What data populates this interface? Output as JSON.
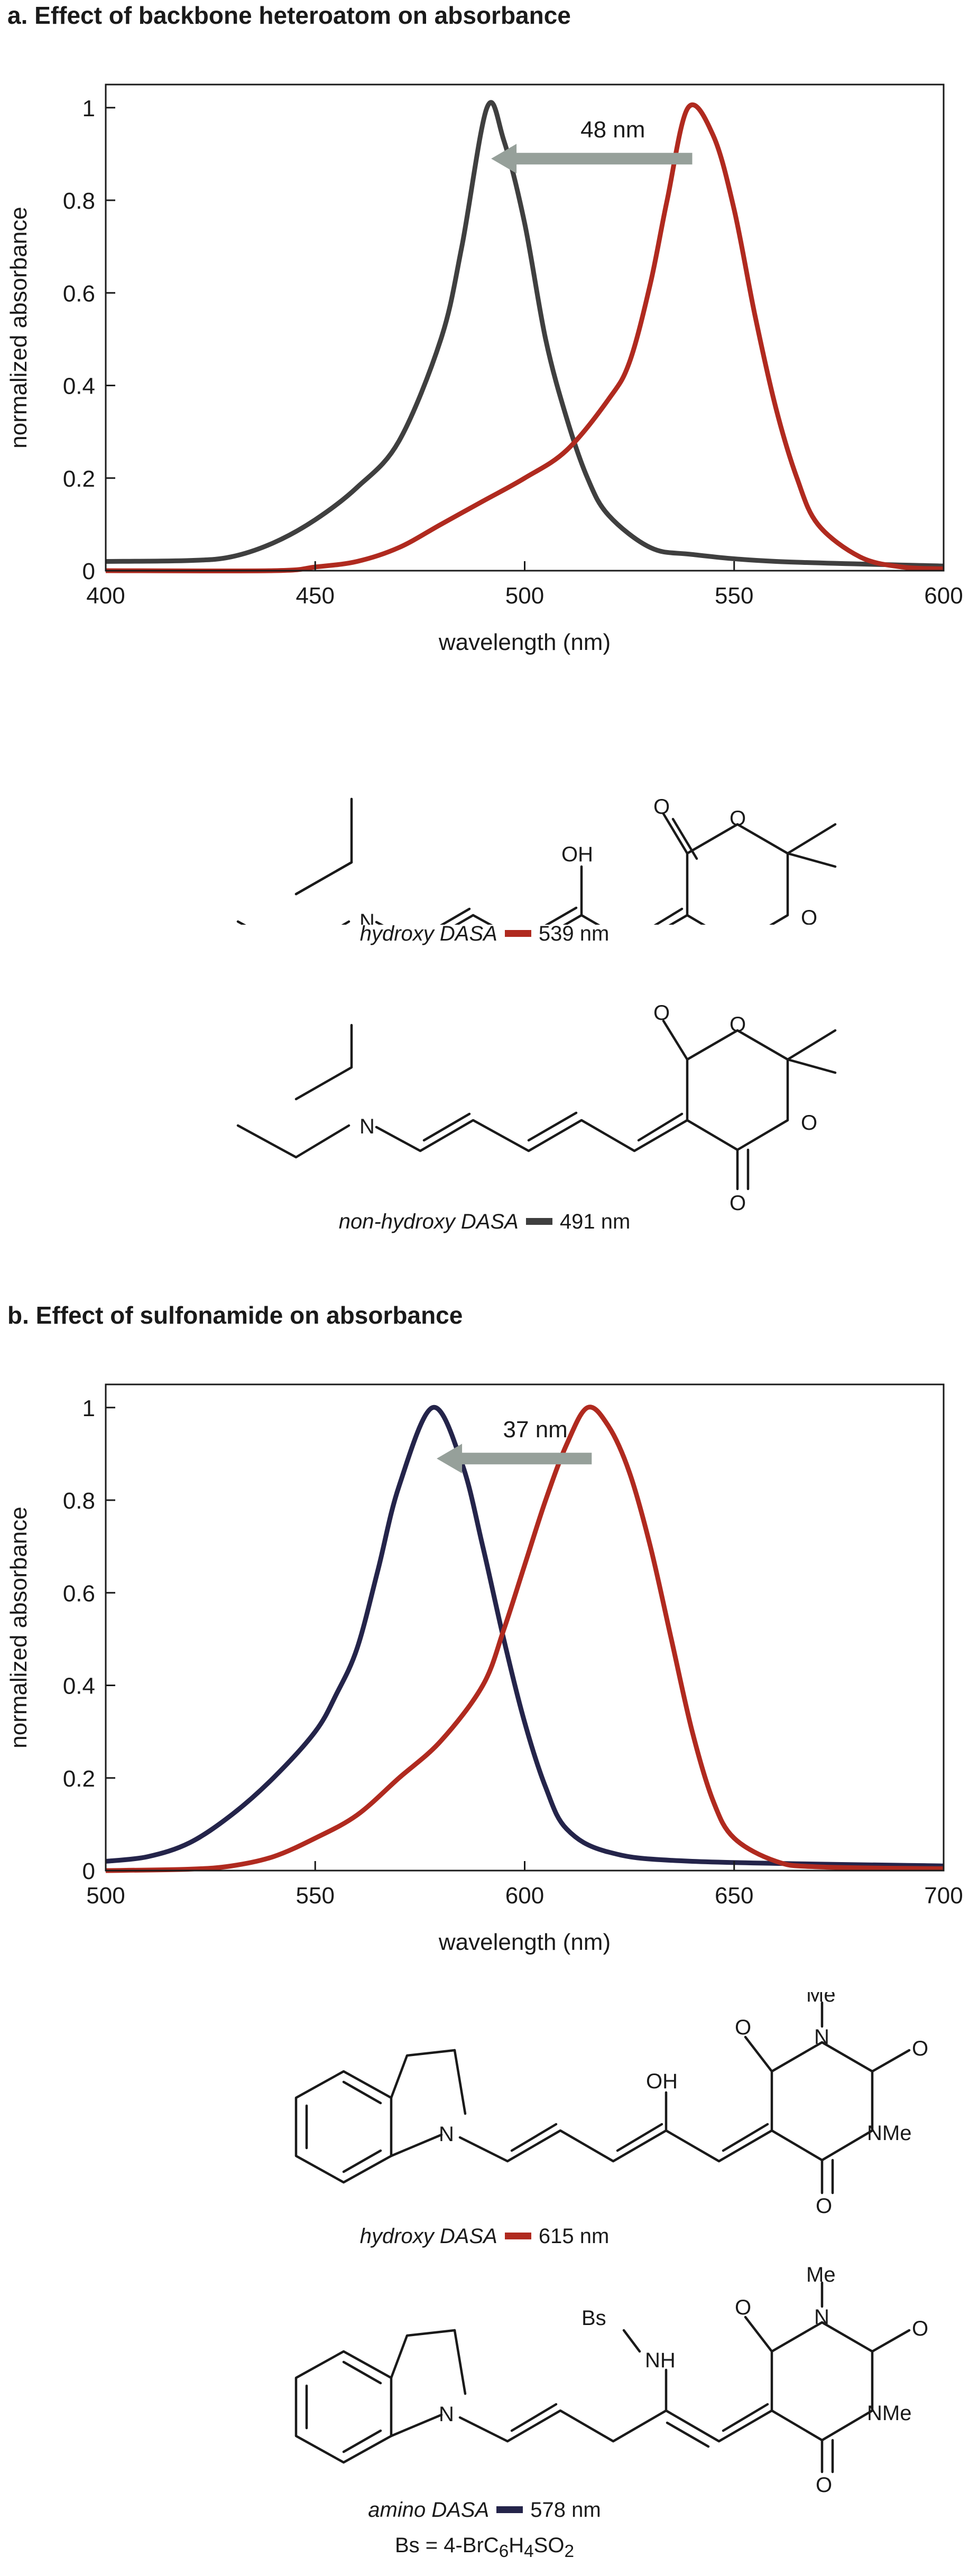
{
  "panel_a": {
    "heading": "a.  Effect of backbone heteroatom on absorbance",
    "shift_label": "48 nm",
    "compound1": {
      "name": "hydroxy DASA",
      "value": "539 nm",
      "color": "#b02a1f"
    },
    "compound2": {
      "name": "non-hydroxy DASA",
      "value": "491 nm",
      "color": "#3f3f3f"
    },
    "atoms": {
      "O": "O",
      "N": "N",
      "OH": "OH"
    }
  },
  "panel_b": {
    "heading": "b.  Effect of sulfonamide on absorbance",
    "shift_label": "37 nm",
    "compound1": {
      "name": "hydroxy DASA",
      "value": "615 nm",
      "color": "#b02a1f"
    },
    "compound2": {
      "name": "amino DASA",
      "value": "578 nm",
      "color": "#24244a"
    },
    "bs_note": "Bs = 4-BrC",
    "bs_note_sub1": "6",
    "bs_note_mid": "H",
    "bs_note_sub2": "4",
    "bs_note_end": "SO",
    "bs_note_sub3": "2",
    "atoms": {
      "O": "O",
      "N": "N",
      "OH": "OH",
      "NMe": "NMe",
      "Me": "Me",
      "NH": "NH",
      "Bs": "Bs"
    }
  },
  "chart_data": [
    {
      "type": "line",
      "xlabel": "wavelength (nm)",
      "ylabel": "normalized absorbance",
      "xlim": [
        400,
        600
      ],
      "ylim": [
        0,
        1.05
      ],
      "xticks": [
        "400",
        "450",
        "500",
        "550",
        "600"
      ],
      "yticks": [
        "0",
        "0.2",
        "0.4",
        "0.6",
        "0.8",
        "1"
      ],
      "series": [
        {
          "color": "#3f3f3f",
          "points": [
            [
              400,
              0.02
            ],
            [
              420,
              0.022
            ],
            [
              430,
              0.03
            ],
            [
              440,
              0.06
            ],
            [
              450,
              0.11
            ],
            [
              460,
              0.18
            ],
            [
              470,
              0.28
            ],
            [
              480,
              0.5
            ],
            [
              485,
              0.7
            ],
            [
              491,
              1.0
            ],
            [
              495,
              0.93
            ],
            [
              500,
              0.75
            ],
            [
              505,
              0.5
            ],
            [
              510,
              0.33
            ],
            [
              515,
              0.2
            ],
            [
              520,
              0.12
            ],
            [
              530,
              0.05
            ],
            [
              540,
              0.035
            ],
            [
              560,
              0.02
            ],
            [
              600,
              0.01
            ]
          ]
        },
        {
          "color": "#b02a1f",
          "points": [
            [
              400,
              0.0
            ],
            [
              440,
              0.0
            ],
            [
              450,
              0.008
            ],
            [
              460,
              0.02
            ],
            [
              470,
              0.05
            ],
            [
              480,
              0.1
            ],
            [
              490,
              0.15
            ],
            [
              500,
              0.2
            ],
            [
              510,
              0.26
            ],
            [
              520,
              0.37
            ],
            [
              525,
              0.45
            ],
            [
              530,
              0.62
            ],
            [
              534,
              0.8
            ],
            [
              539,
              1.0
            ],
            [
              545,
              0.94
            ],
            [
              550,
              0.78
            ],
            [
              555,
              0.55
            ],
            [
              560,
              0.35
            ],
            [
              565,
              0.2
            ],
            [
              570,
              0.1
            ],
            [
              580,
              0.03
            ],
            [
              590,
              0.008
            ],
            [
              600,
              0.004
            ]
          ]
        }
      ]
    },
    {
      "type": "line",
      "xlabel": "wavelength (nm)",
      "ylabel": "normalized absorbance",
      "xlim": [
        500,
        700
      ],
      "ylim": [
        0,
        1.05
      ],
      "xticks": [
        "500",
        "550",
        "600",
        "650",
        "700"
      ],
      "yticks": [
        "0",
        "0.2",
        "0.4",
        "0.6",
        "0.8",
        "1"
      ],
      "series": [
        {
          "color": "#24244a",
          "points": [
            [
              500,
              0.02
            ],
            [
              510,
              0.03
            ],
            [
              520,
              0.06
            ],
            [
              530,
              0.12
            ],
            [
              540,
              0.2
            ],
            [
              550,
              0.3
            ],
            [
              555,
              0.38
            ],
            [
              560,
              0.48
            ],
            [
              565,
              0.65
            ],
            [
              570,
              0.83
            ],
            [
              578,
              1.0
            ],
            [
              585,
              0.88
            ],
            [
              590,
              0.7
            ],
            [
              595,
              0.5
            ],
            [
              600,
              0.32
            ],
            [
              605,
              0.18
            ],
            [
              610,
              0.09
            ],
            [
              620,
              0.04
            ],
            [
              640,
              0.02
            ],
            [
              700,
              0.01
            ]
          ]
        },
        {
          "color": "#b02a1f",
          "points": [
            [
              500,
              0.0
            ],
            [
              520,
              0.003
            ],
            [
              530,
              0.01
            ],
            [
              540,
              0.03
            ],
            [
              550,
              0.07
            ],
            [
              560,
              0.12
            ],
            [
              570,
              0.2
            ],
            [
              580,
              0.28
            ],
            [
              590,
              0.4
            ],
            [
              595,
              0.52
            ],
            [
              600,
              0.66
            ],
            [
              605,
              0.8
            ],
            [
              610,
              0.92
            ],
            [
              615,
              1.0
            ],
            [
              620,
              0.96
            ],
            [
              625,
              0.86
            ],
            [
              630,
              0.7
            ],
            [
              635,
              0.5
            ],
            [
              640,
              0.3
            ],
            [
              645,
              0.15
            ],
            [
              650,
              0.07
            ],
            [
              660,
              0.02
            ],
            [
              670,
              0.008
            ],
            [
              700,
              0.004
            ]
          ]
        }
      ]
    }
  ]
}
